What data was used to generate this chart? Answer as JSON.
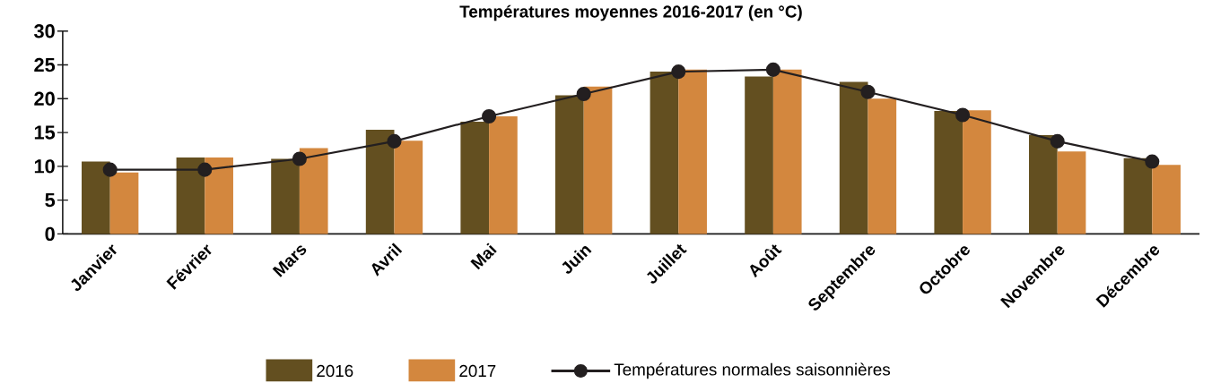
{
  "chart_data": {
    "type": "bar",
    "title": "Températures moyennes 2016-2017 (en °C)",
    "categories": [
      "Janvier",
      "Février",
      "Mars",
      "Avril",
      "Mai",
      "Juin",
      "Juillet",
      "Août",
      "Septembre",
      "Octobre",
      "Novembre",
      "Décembre"
    ],
    "series": [
      {
        "name": "2016",
        "color": "#634f20",
        "values": [
          10.7,
          11.3,
          11.1,
          15.4,
          16.6,
          20.5,
          24.0,
          23.3,
          22.5,
          18.2,
          14.6,
          11.2
        ]
      },
      {
        "name": "2017",
        "color": "#d3873e",
        "values": [
          9.1,
          11.3,
          12.7,
          13.8,
          17.4,
          21.8,
          24.3,
          24.3,
          20.0,
          18.3,
          12.2,
          10.2
        ]
      },
      {
        "name": "Températures normales saisonnières",
        "type": "line",
        "color": "#231f20",
        "marker": "circle",
        "values": [
          9.5,
          9.5,
          11.1,
          13.7,
          17.4,
          20.7,
          24.0,
          24.3,
          21.0,
          17.6,
          13.7,
          10.7
        ]
      }
    ],
    "ylim": [
      0,
      30
    ],
    "yticks": [
      0,
      5,
      10,
      15,
      20,
      25,
      30
    ],
    "grid": false,
    "legend": "bottom"
  }
}
